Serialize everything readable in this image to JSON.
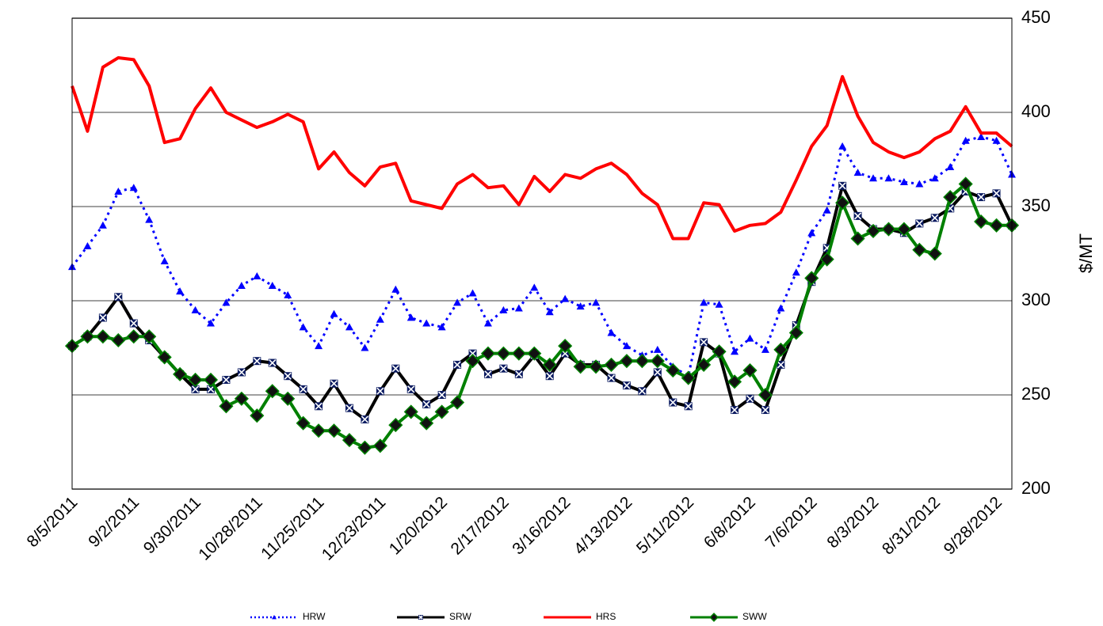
{
  "chart_data": {
    "type": "line",
    "y_label": "$/MT",
    "categories": [
      "8/5/2011",
      null,
      null,
      null,
      "9/2/2011",
      null,
      null,
      null,
      "9/30/2011",
      null,
      null,
      null,
      "10/28/2011",
      null,
      null,
      null,
      "11/25/2011",
      null,
      null,
      null,
      "12/23/2011",
      null,
      null,
      null,
      "1/20/2012",
      null,
      null,
      null,
      "2/17/2012",
      null,
      null,
      null,
      "3/16/2012",
      null,
      null,
      null,
      "4/13/2012",
      null,
      null,
      null,
      "5/11/2012",
      null,
      null,
      null,
      "6/8/2012",
      null,
      null,
      null,
      "7/6/2012",
      null,
      null,
      null,
      "8/3/2012",
      null,
      null,
      null,
      "8/31/2012",
      null,
      null,
      null,
      "9/28/2012",
      null
    ],
    "ylim": [
      200,
      450
    ],
    "yticks": [
      200,
      250,
      300,
      350,
      400,
      450
    ],
    "grid": true,
    "y_axis_side": "right",
    "legend": "bottom",
    "series": [
      {
        "name": "HRW",
        "color": "#0000ff",
        "dashed": true,
        "marker": "triangle",
        "values": [
          318,
          329,
          340,
          358,
          360,
          343,
          321,
          305,
          295,
          288,
          299,
          308,
          313,
          308,
          303,
          286,
          276,
          293,
          286,
          275,
          290,
          306,
          291,
          288,
          286,
          299,
          304,
          288,
          295,
          296,
          307,
          294,
          301,
          297,
          299,
          283,
          276,
          271,
          274,
          265,
          260,
          299,
          298,
          273,
          280,
          274,
          296,
          315,
          336,
          348,
          382,
          368,
          365,
          365,
          363,
          362,
          365,
          371,
          385,
          387,
          385,
          367
        ]
      },
      {
        "name": "SRW",
        "color": "#000000",
        "dashed": false,
        "marker": "cross",
        "values": [
          276,
          281,
          291,
          302,
          288,
          279,
          270,
          261,
          253,
          253,
          258,
          262,
          268,
          267,
          260,
          253,
          244,
          256,
          243,
          237,
          252,
          264,
          253,
          245,
          250,
          266,
          272,
          261,
          264,
          261,
          271,
          260,
          272,
          266,
          266,
          259,
          255,
          252,
          262,
          246,
          244,
          278,
          272,
          242,
          248,
          242,
          266,
          287,
          310,
          328,
          361,
          345,
          338,
          338,
          336,
          341,
          344,
          349,
          358,
          355,
          357,
          340
        ]
      },
      {
        "name": "HRS",
        "color": "#ff0000",
        "dashed": false,
        "marker": "none",
        "values": [
          414,
          390,
          424,
          429,
          428,
          414,
          384,
          386,
          402,
          413,
          400,
          396,
          392,
          395,
          399,
          395,
          370,
          379,
          368,
          361,
          371,
          373,
          353,
          351,
          349,
          362,
          367,
          360,
          361,
          351,
          366,
          358,
          367,
          365,
          370,
          373,
          367,
          357,
          351,
          333,
          333,
          352,
          351,
          337,
          340,
          341,
          347,
          364,
          382,
          393,
          419,
          398,
          384,
          379,
          376,
          379,
          386,
          390,
          403,
          389,
          389,
          382
        ]
      },
      {
        "name": "SWW",
        "color": "#008000",
        "dashed": false,
        "marker": "diamond",
        "values": [
          276,
          281,
          281,
          279,
          281,
          281,
          270,
          261,
          258,
          258,
          244,
          248,
          239,
          252,
          248,
          235,
          231,
          231,
          226,
          222,
          223,
          234,
          241,
          235,
          241,
          246,
          268,
          272,
          272,
          272,
          272,
          266,
          276,
          265,
          265,
          266,
          268,
          268,
          268,
          263,
          259,
          266,
          273,
          257,
          263,
          250,
          274,
          283,
          312,
          322,
          352,
          333,
          337,
          338,
          338,
          327,
          325,
          355,
          362,
          342,
          340,
          340
        ]
      }
    ]
  }
}
